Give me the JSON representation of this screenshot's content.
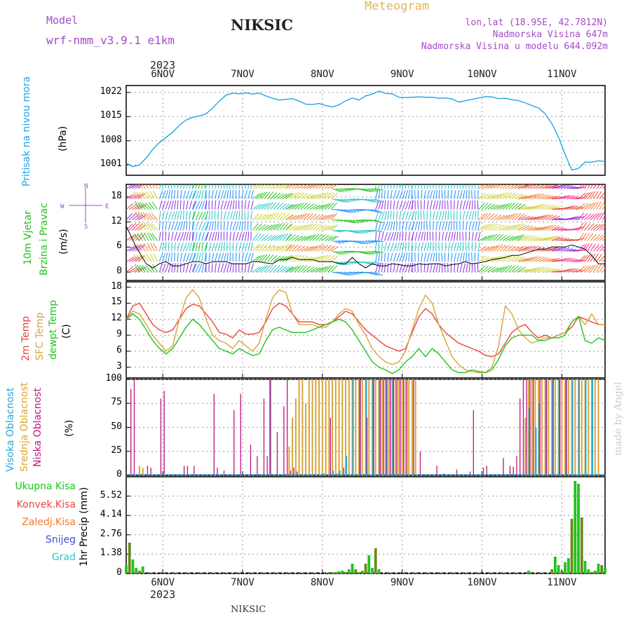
{
  "header": {
    "title": "NIKSIC",
    "model_label": "Model",
    "model_name": "wrf-nmm_v3.9.1 e1km",
    "meteogram": "Meteogram",
    "coords": "lon,lat (18.95E, 42.7812N)",
    "elevation": "Nadmorska Visina 647m",
    "model_elevation": "Nadmorska Visina u modelu 644.092m",
    "year_top": "2023",
    "year_bottom": "2023",
    "footer": "NIKSIC",
    "credit": "made by Angel"
  },
  "colors": {
    "pressure": "#1fa5e8",
    "temp2m": "#e8453c",
    "sfctemp": "#d9a43a",
    "dewpt": "#22c31e",
    "high_cloud": "#2aa6d6",
    "mid_cloud": "#d9a43a",
    "low_cloud": "#c0137f",
    "total_precip": "#22c31e",
    "conv_precip": "#e8453c",
    "frozen_precip": "#f07a2a",
    "snow": "#4a4ad8",
    "hail": "#2fc9c9",
    "wind_speed": "#000000",
    "wind_dir": "#e8453c",
    "model_label": "#a64ac9"
  },
  "dates": [
    "6NOV",
    "7NOV",
    "8NOV",
    "9NOV",
    "10NOV",
    "11NOV"
  ],
  "panels": {
    "pressure": {
      "labels": [
        "Pritisak na nivou mora",
        "(hPa)"
      ],
      "yticks": [
        "1022",
        "1015",
        "1008",
        "1001"
      ]
    },
    "wind": {
      "labels": [
        "10m Vjetar",
        "Brzina i Pravac",
        "(m/s)"
      ],
      "compass": [
        "N",
        "S",
        "W",
        "E"
      ],
      "yticks": [
        "18",
        "12",
        "6",
        "0"
      ]
    },
    "temperature": {
      "labels": [
        "2m Temp",
        "SFC Temp",
        "dewpt Temp",
        "(C)"
      ],
      "yticks": [
        "18",
        "15",
        "12",
        "9",
        "6",
        "3"
      ]
    },
    "clouds": {
      "labels": [
        "Visoka Oblacnost",
        "Srednja Oblacnost",
        "Niska Oblacnost",
        "(%)"
      ],
      "yticks": [
        "100",
        "75",
        "50",
        "25",
        "0"
      ]
    },
    "precip": {
      "axis_label": "1hr Precip (mm)",
      "legend": [
        "Ukupna Kisa",
        "Konvek.Kisa",
        "Zaledj.Kisa",
        "Snijeg",
        "Grad"
      ],
      "yticks": [
        "5.52",
        "4.14",
        "2.76",
        "1.38",
        "0"
      ]
    }
  },
  "chart_data": {
    "type": "line",
    "x_unit": "hours from 2023-11-05 13 UTC",
    "x_range": [
      0,
      144
    ],
    "date_tick_hours": [
      11,
      35,
      59,
      83,
      107,
      131
    ],
    "pressure": {
      "name": "Pritisak na nivou mora",
      "ylim": [
        998,
        1024
      ],
      "x": [
        0,
        2,
        4,
        6,
        8,
        10,
        12,
        14,
        16,
        18,
        20,
        22,
        24,
        26,
        28,
        30,
        32,
        34,
        36,
        38,
        40,
        42,
        44,
        46,
        48,
        50,
        52,
        54,
        56,
        58,
        60,
        62,
        64,
        66,
        68,
        70,
        72,
        74,
        76,
        78,
        80,
        82,
        84,
        86,
        88,
        90,
        92,
        94,
        96,
        98,
        100,
        102,
        104,
        106,
        108,
        110,
        112,
        114,
        116,
        118,
        120,
        122,
        124,
        126,
        128,
        130,
        132,
        134,
        136,
        138,
        140,
        142,
        144
      ],
      "values": [
        1001.5,
        1000.5,
        1001,
        1003,
        1005.5,
        1007.5,
        1009,
        1010.5,
        1012.5,
        1014,
        1014.8,
        1015.2,
        1015.8,
        1017.5,
        1019.5,
        1021.2,
        1021.8,
        1021.6,
        1021.9,
        1021.5,
        1021.8,
        1021,
        1020.3,
        1019.8,
        1020,
        1020.2,
        1019.5,
        1018.6,
        1018.5,
        1018.8,
        1018.2,
        1017.8,
        1018.4,
        1019.6,
        1020.4,
        1019.8,
        1021,
        1021.5,
        1022.4,
        1021.7,
        1021.6,
        1020.6,
        1020.5,
        1020.6,
        1020.7,
        1020.6,
        1020.6,
        1020.3,
        1020.4,
        1020.1,
        1019.2,
        1019.6,
        1020,
        1020.4,
        1020.8,
        1020.7,
        1020.2,
        1020.3,
        1019.9,
        1019.6,
        1019,
        1018.2,
        1017.5,
        1015.8,
        1013,
        1009,
        1004,
        999.5,
        1000,
        1001.8,
        1001.8,
        1002.2,
        1002
      ]
    },
    "wind": {
      "ylim": [
        -2,
        21
      ],
      "speed": {
        "name": "Brzina",
        "x": [
          0,
          3,
          6,
          8,
          10,
          12,
          14,
          16,
          18,
          20,
          22,
          24,
          26,
          28,
          30,
          32,
          34,
          36,
          38,
          40,
          42,
          44,
          46,
          48,
          50,
          52,
          54,
          56,
          58,
          60,
          62,
          64,
          66,
          68,
          70,
          72,
          74,
          76,
          78,
          80,
          82,
          84,
          86,
          88,
          90,
          92,
          94,
          96,
          98,
          100,
          102,
          104,
          106,
          108,
          110,
          112,
          114,
          116,
          118,
          120,
          122,
          124,
          126,
          128,
          130,
          132,
          134,
          136,
          138,
          140,
          142,
          144
        ],
        "values": [
          11,
          6,
          2,
          1,
          2,
          2.5,
          1.5,
          1.5,
          2,
          2.5,
          2.5,
          2,
          2.5,
          2.5,
          2.5,
          2,
          2,
          2,
          2.5,
          2.5,
          2.2,
          2,
          3,
          3,
          3.5,
          3,
          3,
          3,
          2.5,
          2.5,
          2.5,
          2,
          2,
          3.5,
          2,
          1,
          2,
          1.5,
          1.5,
          2,
          1.8,
          1.5,
          1.5,
          2,
          1.8,
          2,
          2,
          1.5,
          1.8,
          2,
          2.5,
          2,
          2.2,
          2.5,
          3,
          3.2,
          3.5,
          4,
          4,
          4.5,
          5,
          5.5,
          5.5,
          6,
          6,
          6,
          6.5,
          6,
          5.5,
          4,
          2,
          2
        ]
      }
    },
    "temperature": {
      "ylim": [
        1,
        19
      ],
      "x": [
        0,
        2,
        4,
        6,
        8,
        10,
        12,
        14,
        16,
        18,
        20,
        22,
        24,
        26,
        28,
        30,
        32,
        34,
        36,
        38,
        40,
        42,
        44,
        46,
        48,
        50,
        52,
        54,
        56,
        58,
        60,
        62,
        64,
        66,
        68,
        70,
        72,
        74,
        76,
        78,
        80,
        82,
        84,
        86,
        88,
        90,
        92,
        94,
        96,
        98,
        100,
        102,
        104,
        106,
        108,
        110,
        112,
        114,
        116,
        118,
        120,
        122,
        124,
        126,
        128,
        130,
        132,
        134,
        136,
        138,
        140,
        142,
        144
      ],
      "series": [
        {
          "name": "2m Temp",
          "values": [
            12,
            14.5,
            15,
            13,
            11,
            10,
            9.5,
            10,
            12,
            14,
            14.8,
            14.5,
            13,
            11.5,
            9.5,
            9.2,
            8.5,
            10,
            9.2,
            9.2,
            9.5,
            11.5,
            14,
            15,
            14.5,
            13,
            11.5,
            11.5,
            11.5,
            11,
            11,
            11.5,
            12.5,
            13.5,
            13,
            11.5,
            10,
            9,
            8,
            7,
            6.5,
            6,
            6.5,
            9.5,
            12.5,
            14,
            13,
            11,
            9.5,
            8.5,
            7.5,
            7,
            6.5,
            6,
            5.2,
            5,
            5.5,
            7.5,
            9.5,
            10.5,
            11,
            9.5,
            8.5,
            9,
            8.5,
            9,
            9.5,
            10.5,
            12.5,
            12,
            11.5,
            11,
            11
          ]
        },
        {
          "name": "SFC Temp",
          "values": [
            12,
            13.5,
            13,
            11,
            9,
            7.5,
            6,
            7,
            12,
            16,
            17.5,
            16,
            12,
            9,
            8,
            7.5,
            6.5,
            8,
            7,
            6,
            7.5,
            12,
            16,
            17.5,
            17,
            13,
            11,
            11,
            11,
            10.5,
            10.5,
            11.5,
            13,
            14,
            13.5,
            11,
            9,
            6.5,
            5,
            4,
            3.5,
            4,
            6,
            10,
            14,
            16.5,
            15,
            11,
            8,
            5,
            3.5,
            2.5,
            2.2,
            2,
            2,
            3,
            7,
            14.5,
            13,
            10,
            8.5,
            7.5,
            8,
            8.5,
            8.5,
            9,
            9.5,
            11.5,
            12.5,
            11,
            13,
            11,
            11
          ]
        },
        {
          "name": "dewpt Temp",
          "values": [
            12,
            13,
            12,
            10,
            8,
            6.5,
            5.5,
            6.5,
            8.5,
            10.5,
            12,
            11,
            9.5,
            8,
            6.5,
            6,
            5.5,
            6.5,
            5.8,
            5.2,
            5.5,
            8,
            10,
            10.5,
            10,
            9.5,
            9.5,
            9.5,
            10,
            10.5,
            11,
            11.5,
            12,
            11.5,
            10,
            8,
            6,
            4,
            3,
            2.5,
            1.8,
            2.5,
            4,
            5,
            6.5,
            5,
            6.5,
            5.5,
            4,
            2.5,
            2,
            2,
            2.5,
            2.2,
            2,
            2.5,
            4.5,
            7,
            8.5,
            9,
            9,
            9,
            8,
            8,
            8.5,
            8.5,
            9,
            11.5,
            12.5,
            8,
            7.5,
            8.5,
            8
          ]
        }
      ]
    },
    "clouds": {
      "ylim": [
        0,
        100
      ],
      "low": {
        "name": "Niska Oblacnost",
        "x": [
          1,
          2,
          6,
          7,
          10,
          11,
          17,
          18,
          20,
          26,
          27,
          29,
          32,
          34,
          37,
          39,
          41,
          42,
          43,
          45,
          47,
          48,
          49,
          50,
          51,
          59,
          61,
          63,
          65,
          70,
          72,
          74,
          76,
          77,
          78,
          79,
          80,
          81,
          82,
          83,
          84,
          86,
          88,
          93,
          95,
          99,
          103,
          104,
          107,
          108,
          113,
          115,
          116,
          117,
          118,
          119,
          120,
          121,
          122,
          124,
          126,
          128,
          130,
          132
        ],
        "values": [
          90,
          100,
          10,
          8,
          80,
          88,
          10,
          10,
          10,
          85,
          8,
          5,
          68,
          85,
          32,
          20,
          80,
          20,
          100,
          45,
          72,
          100,
          5,
          8,
          4,
          2,
          60,
          2,
          8,
          100,
          60,
          100,
          100,
          100,
          100,
          100,
          100,
          100,
          100,
          100,
          100,
          100,
          25,
          10,
          2,
          6,
          4,
          68,
          8,
          10,
          18,
          10,
          9,
          20,
          80,
          100,
          100,
          100,
          100,
          100,
          100,
          100,
          100,
          100
        ]
      },
      "mid": {
        "name": "Srednja Oblacnost",
        "x": [
          2,
          4,
          5,
          49,
          50,
          51,
          52,
          53,
          54,
          55,
          56,
          57,
          58,
          59,
          60,
          61,
          62,
          63,
          64,
          65,
          66,
          67,
          68,
          69,
          70,
          71,
          72,
          73,
          74,
          75,
          76,
          77,
          78,
          79,
          80,
          81,
          82,
          83,
          84,
          85,
          86,
          87,
          120,
          121,
          122,
          123,
          124,
          125,
          126,
          127,
          128,
          129,
          130,
          131,
          132,
          133,
          134,
          135,
          136,
          137,
          138,
          139,
          140,
          141,
          142
        ],
        "values": [
          0,
          10,
          8,
          30,
          60,
          80,
          100,
          100,
          75,
          100,
          100,
          100,
          100,
          100,
          100,
          100,
          100,
          100,
          100,
          100,
          100,
          100,
          100,
          100,
          100,
          100,
          100,
          100,
          100,
          100,
          100,
          100,
          100,
          100,
          100,
          100,
          100,
          100,
          100,
          100,
          100,
          100,
          60,
          100,
          100,
          100,
          100,
          100,
          100,
          100,
          100,
          100,
          100,
          100,
          100,
          100,
          100,
          100,
          100,
          100,
          100,
          100,
          100,
          100,
          100
        ]
      },
      "high": {
        "name": "Visoka Oblacnost",
        "x": [
          43,
          62,
          64,
          66,
          68,
          70,
          72,
          74,
          76,
          78,
          80,
          121,
          123,
          124,
          126,
          128,
          130,
          132,
          134,
          136,
          138,
          140
        ],
        "values": [
          100,
          5,
          5,
          20,
          100,
          100,
          100,
          100,
          100,
          100,
          100,
          70,
          50,
          75,
          100,
          100,
          100,
          100,
          100,
          100,
          100,
          100
        ]
      }
    },
    "precip": {
      "ylim": [
        0,
        6.9
      ],
      "total": {
        "name": "Ukupna Kisa",
        "x": [
          0,
          1,
          2,
          3,
          4,
          5,
          62,
          63,
          64,
          65,
          66,
          67,
          68,
          69,
          70,
          71,
          72,
          73,
          74,
          75,
          76,
          121,
          128,
          129,
          130,
          131,
          132,
          133,
          134,
          135,
          136,
          137,
          138,
          139,
          140,
          141,
          142,
          143,
          144
        ],
        "values": [
          0.6,
          2.2,
          1.0,
          0.4,
          0.2,
          0.5,
          0.1,
          0.1,
          0.15,
          0.2,
          0.1,
          0.3,
          0.7,
          0.3,
          0.1,
          0.2,
          0.7,
          1.3,
          0.4,
          1.8,
          0.3,
          0.2,
          0.3,
          1.2,
          0.6,
          0.2,
          0.8,
          1.1,
          3.9,
          6.6,
          6.4,
          4.0,
          0.9,
          0.3,
          0.1,
          0.2,
          0.7,
          0.6,
          0.4
        ]
      },
      "convective": {
        "name": "Konvek.Kisa",
        "x": [],
        "values": []
      },
      "frozen": {
        "name": "Zaledj.Kisa",
        "x": [],
        "values": []
      },
      "snow": {
        "name": "Snijeg",
        "x": [],
        "values": []
      },
      "hail": {
        "name": "Grad",
        "x": [],
        "values": []
      }
    }
  }
}
